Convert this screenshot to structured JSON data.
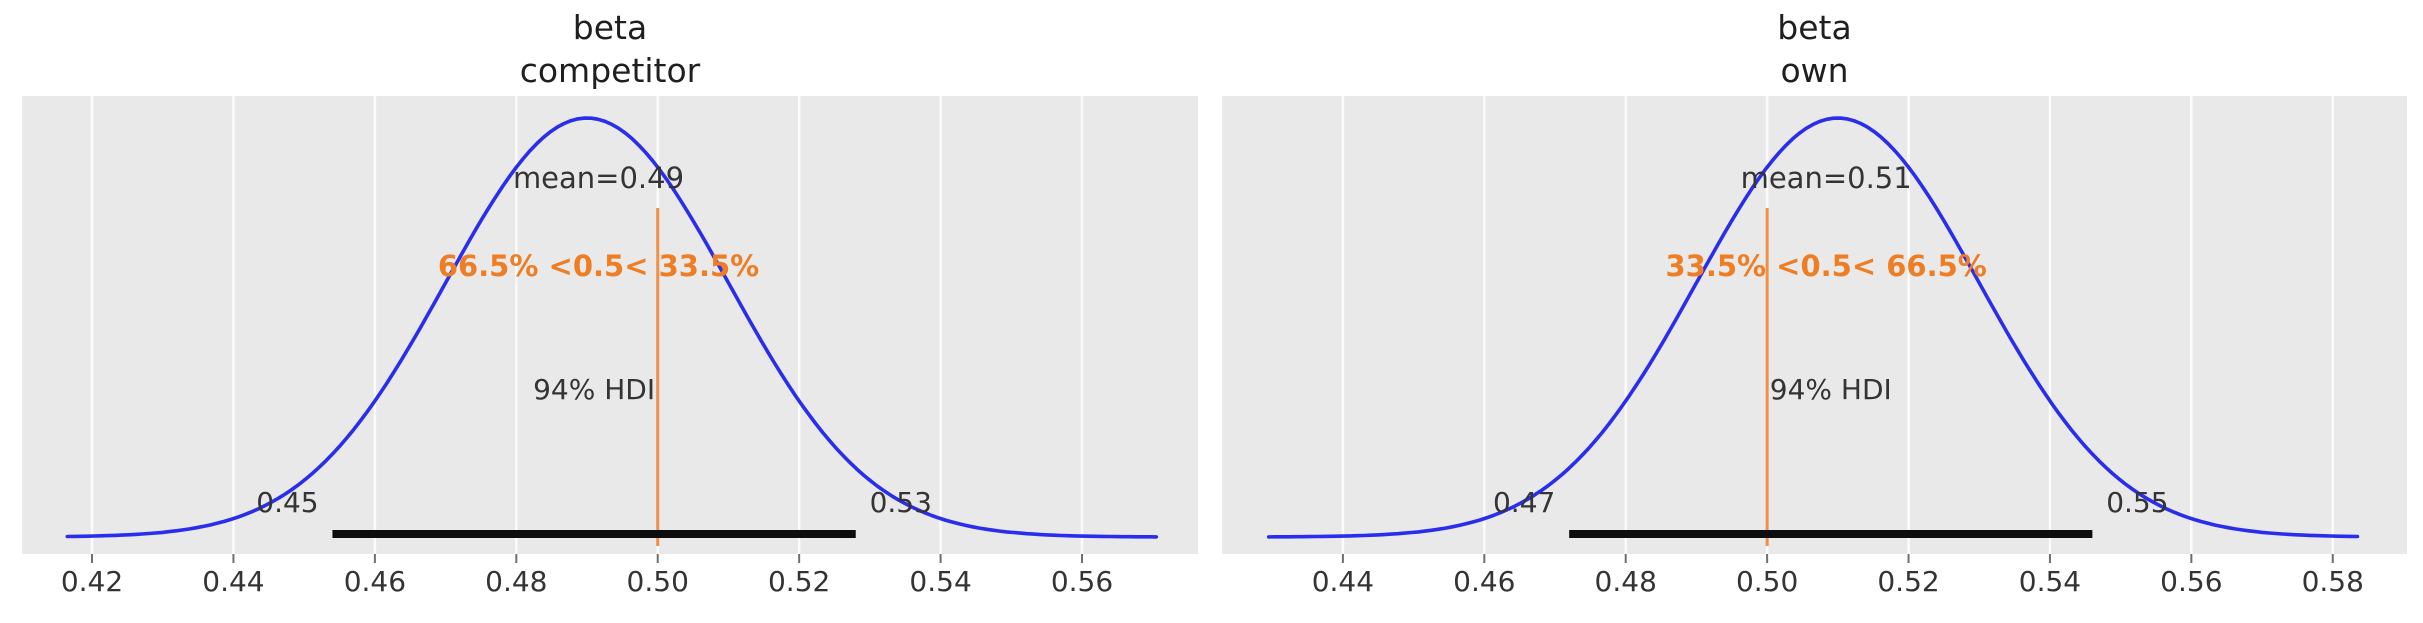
{
  "figure": {
    "background_color": "#ffffff",
    "plot_background_color": "#e9e9e9",
    "grid_color": "#fbfbfb",
    "text_color": "#343434",
    "tick_mark_color": "#6e6e6e"
  },
  "chart_data": [
    {
      "type": "kde",
      "title_lines": [
        "beta",
        "competitor"
      ],
      "curve_color": "#2a2eec",
      "ref_color": "#ee7d23",
      "hdi_bar_color": "#0d0d0d",
      "mean": 0.49,
      "mean_label": "mean=0.49",
      "sd": 0.02,
      "ref_value": 0.5,
      "ref_label": "66.5% <0.5< 33.5%",
      "prob_below_ref": "66.5%",
      "prob_above_ref": "33.5%",
      "hdi_label": "94% HDI",
      "hdi": [
        0.454,
        0.528
      ],
      "hdi_bound_labels": [
        "0.45",
        "0.53"
      ],
      "x_ticks": [
        0.42,
        0.44,
        0.46,
        0.48,
        0.5,
        0.52,
        0.54,
        0.56
      ],
      "x_tick_labels": [
        "0.42",
        "0.44",
        "0.46",
        "0.48",
        "0.50",
        "0.52",
        "0.54",
        "0.56"
      ],
      "x_range": [
        0.4101,
        0.5764
      ],
      "curve_range": [
        0.4165,
        0.5705
      ],
      "grid": true,
      "legend": false
    },
    {
      "type": "kde",
      "title_lines": [
        "beta",
        "own"
      ],
      "curve_color": "#2a2eec",
      "ref_color": "#ee7d23",
      "hdi_bar_color": "#0d0d0d",
      "mean": 0.51,
      "mean_label": "mean=0.51",
      "sd": 0.02,
      "ref_value": 0.5,
      "ref_label": "33.5% <0.5< 66.5%",
      "prob_below_ref": "33.5%",
      "prob_above_ref": "66.5%",
      "hdi_label": "94% HDI",
      "hdi": [
        0.472,
        0.546
      ],
      "hdi_bound_labels": [
        "0.47",
        "0.55"
      ],
      "x_ticks": [
        0.44,
        0.46,
        0.48,
        0.5,
        0.52,
        0.54,
        0.56,
        0.58
      ],
      "x_tick_labels": [
        "0.44",
        "0.46",
        "0.48",
        "0.50",
        "0.52",
        "0.54",
        "0.56",
        "0.58"
      ],
      "x_range": [
        0.4229,
        0.5905
      ],
      "curve_range": [
        0.4295,
        0.5835
      ],
      "grid": true,
      "legend": false
    }
  ]
}
